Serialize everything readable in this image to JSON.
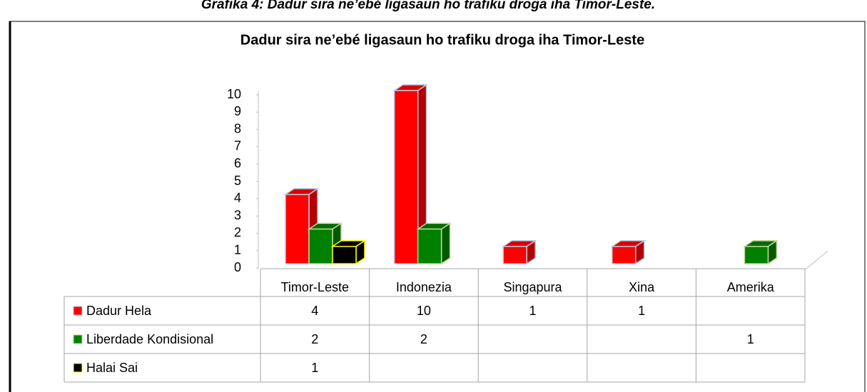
{
  "caption": "Grafika 4: Dadur sira ne’ebé ligasaun ho trafiku droga iha Timor-Leste.",
  "chart_data": {
    "type": "bar3d",
    "title": "Dadur sira ne’ebé ligasaun ho trafiku droga iha Timor-Leste",
    "categories": [
      "Timor-Leste",
      "Indonezia",
      "Singapura",
      "Xina",
      "Amerika"
    ],
    "series": [
      {
        "name": "Dadur Hela",
        "color": "#ff0000",
        "edge": "#b8cce4",
        "values": [
          4,
          10,
          1,
          1,
          null
        ]
      },
      {
        "name": "Liberdade Kondisional",
        "color": "#008000",
        "edge": "#c4d79b",
        "values": [
          2,
          2,
          null,
          null,
          1
        ]
      },
      {
        "name": "Halai Sai",
        "color": "#000000",
        "edge": "#ffff00",
        "values": [
          1,
          null,
          null,
          null,
          null
        ]
      }
    ],
    "ylim": [
      0,
      10
    ],
    "yticks": [
      0,
      1,
      2,
      3,
      4,
      5,
      6,
      7,
      8,
      9,
      10
    ],
    "data_table": true
  }
}
